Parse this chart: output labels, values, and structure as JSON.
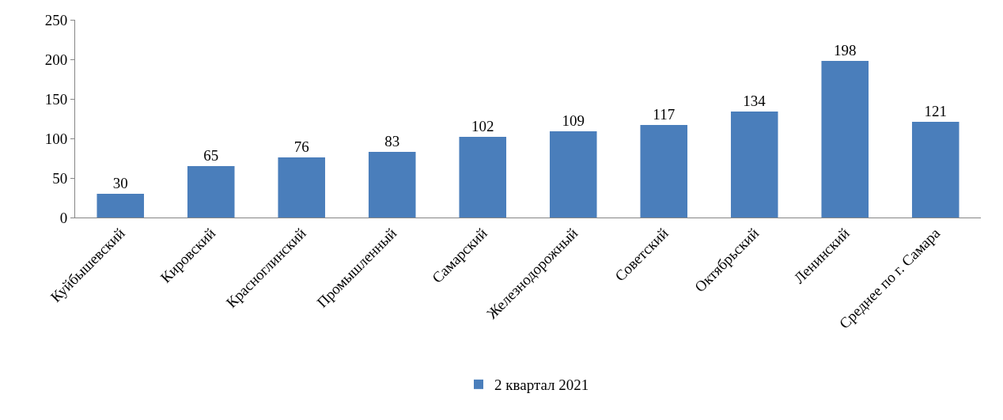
{
  "chart_data": {
    "type": "bar",
    "categories": [
      "Куйбышевский",
      "Кировский",
      "Красноглинский",
      "Промышленный",
      "Самарский",
      "Железнодорожный",
      "Советский",
      "Октябрьский",
      "Ленинский",
      "Среднее по г. Самара"
    ],
    "series": [
      {
        "name": "2 квартал 2021",
        "color": "#4a7ebb",
        "values": [
          30,
          65,
          76,
          83,
          102,
          109,
          117,
          134,
          198,
          121
        ]
      }
    ],
    "ylim": [
      0,
      250
    ],
    "yticks": [
      0,
      50,
      100,
      150,
      200,
      250
    ],
    "data_labels": true,
    "grid": false,
    "legend": "bottom"
  }
}
